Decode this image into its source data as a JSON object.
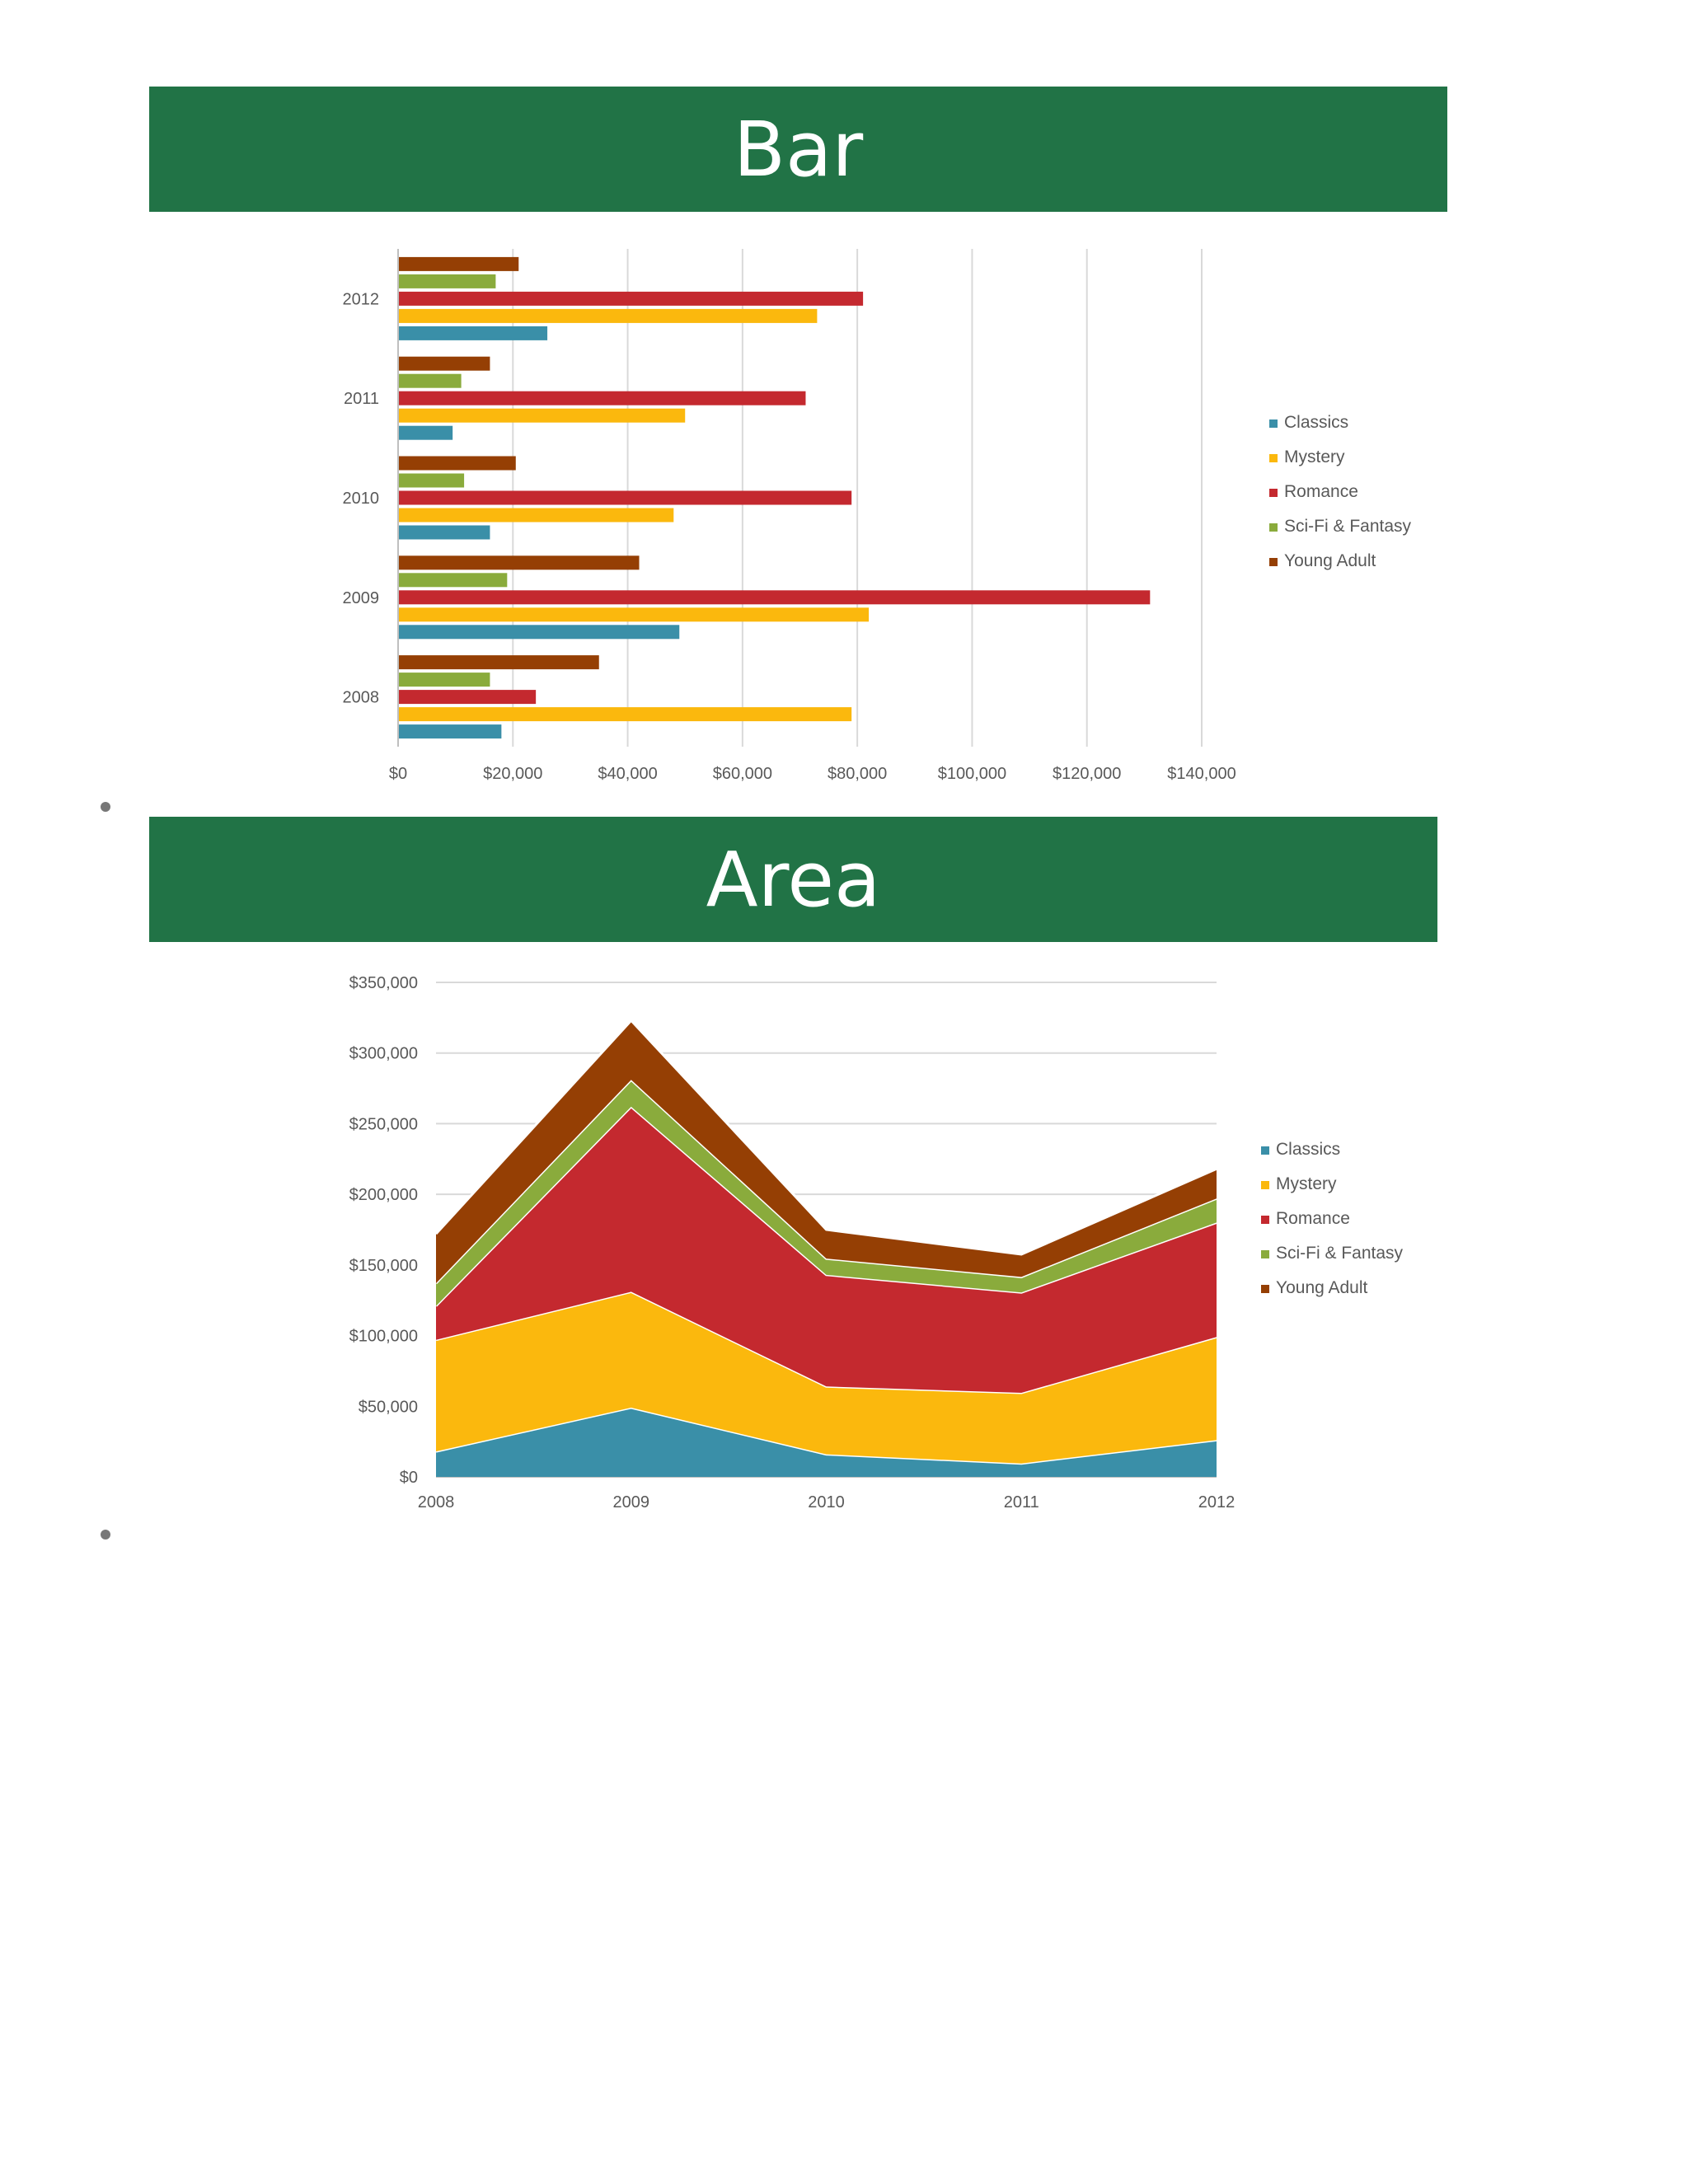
{
  "sections": {
    "bar": {
      "title": "Bar"
    },
    "area": {
      "title": "Area"
    }
  },
  "colors": {
    "Classics": "#3a8fa8",
    "Mystery": "#fbb80d",
    "Romance": "#c4292f",
    "Sci-Fi & Fantasy": "#8aab3c",
    "Young Adult": "#953f04",
    "banner": "#217346"
  },
  "chart_data": [
    {
      "type": "bar",
      "orientation": "horizontal",
      "title": "Bar",
      "categories": [
        "2008",
        "2009",
        "2010",
        "2011",
        "2012"
      ],
      "series": [
        {
          "name": "Classics",
          "values": [
            18000,
            49000,
            16000,
            9500,
            26000
          ]
        },
        {
          "name": "Mystery",
          "values": [
            79000,
            82000,
            48000,
            50000,
            73000
          ]
        },
        {
          "name": "Romance",
          "values": [
            24000,
            131000,
            79000,
            71000,
            81000
          ]
        },
        {
          "name": "Sci-Fi & Fantasy",
          "values": [
            16000,
            19000,
            11500,
            11000,
            17000
          ]
        },
        {
          "name": "Young Adult",
          "values": [
            35000,
            42000,
            20500,
            16000,
            21000
          ]
        }
      ],
      "xlim": [
        0,
        140000
      ],
      "xticks": [
        "$0",
        "$20,000",
        "$40,000",
        "$60,000",
        "$80,000",
        "$100,000",
        "$120,000",
        "$140,000"
      ],
      "xlabel": "",
      "ylabel": "",
      "grid": true,
      "legend": "right"
    },
    {
      "type": "area",
      "stacked": true,
      "title": "Area",
      "x": [
        "2008",
        "2009",
        "2010",
        "2011",
        "2012"
      ],
      "series": [
        {
          "name": "Classics",
          "values": [
            18000,
            49000,
            16000,
            9500,
            26000
          ]
        },
        {
          "name": "Mystery",
          "values": [
            79000,
            82000,
            48000,
            50000,
            73000
          ]
        },
        {
          "name": "Romance",
          "values": [
            24000,
            131000,
            79000,
            71000,
            81000
          ]
        },
        {
          "name": "Sci-Fi & Fantasy",
          "values": [
            16000,
            19000,
            11500,
            11000,
            17000
          ]
        },
        {
          "name": "Young Adult",
          "values": [
            35000,
            42000,
            20500,
            16000,
            21000
          ]
        }
      ],
      "ylim": [
        0,
        350000
      ],
      "yticks": [
        "$0",
        "$50,000",
        "$100,000",
        "$150,000",
        "$200,000",
        "$250,000",
        "$300,000",
        "$350,000"
      ],
      "xlabel": "",
      "ylabel": "",
      "grid": true,
      "legend": "right"
    }
  ]
}
